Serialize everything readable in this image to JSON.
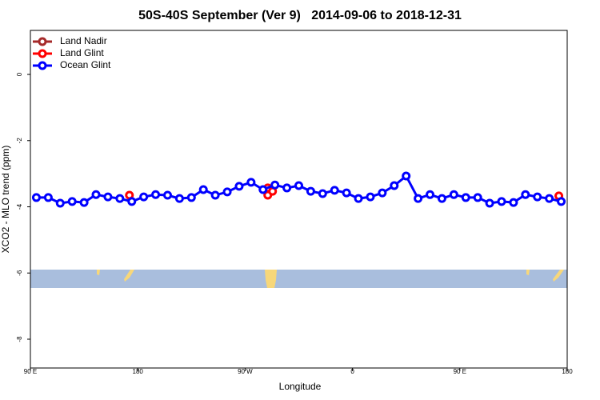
{
  "chart_data": {
    "type": "line",
    "title": "50S-40S September (Ver 9)   2014-09-06 to 2018-12-31",
    "xlabel": "Longitude",
    "ylabel": "XCO2 - MLO trend (ppm)",
    "xlim": [
      90,
      540
    ],
    "xticks": [
      {
        "value": 90,
        "label": "90 E"
      },
      {
        "value": 180,
        "label": "180"
      },
      {
        "value": 270,
        "label": "90 W"
      },
      {
        "value": 360,
        "label": "0"
      },
      {
        "value": 450,
        "label": "90 E"
      },
      {
        "value": 540,
        "label": "180"
      }
    ],
    "ylim": [
      -8.87,
      1.33
    ],
    "yticks": [
      0,
      -2,
      -4,
      -6,
      -8
    ],
    "legend": "top-left",
    "series": [
      {
        "name": "Land Nadir",
        "color": "#a52a2a",
        "line": true,
        "x": [],
        "values": []
      },
      {
        "name": "Land Glint",
        "color": "#ff0000",
        "line": false,
        "x": [
          173,
          289,
          289,
          293,
          533
        ],
        "values": [
          -3.65,
          -3.43,
          -3.65,
          -3.53,
          -3.67
        ]
      },
      {
        "name": "Ocean Glint",
        "color": "#0000ff",
        "line": true,
        "x": [
          95,
          105,
          115,
          125,
          135,
          145,
          155,
          165,
          175,
          185,
          195,
          205,
          215,
          225,
          235,
          245,
          255,
          265,
          275,
          285,
          295,
          305,
          315,
          325,
          335,
          345,
          355,
          365,
          375,
          385,
          395,
          405,
          415,
          425,
          435,
          445,
          455,
          465,
          475,
          485,
          495,
          505,
          515,
          525,
          535
        ],
        "values": [
          -3.72,
          -3.72,
          -3.89,
          -3.84,
          -3.87,
          -3.63,
          -3.7,
          -3.75,
          -3.84,
          -3.7,
          -3.63,
          -3.65,
          -3.75,
          -3.72,
          -3.48,
          -3.65,
          -3.55,
          -3.38,
          -3.26,
          -3.48,
          -3.34,
          -3.43,
          -3.36,
          -3.53,
          -3.6,
          -3.5,
          -3.58,
          -3.75,
          -3.7,
          -3.58,
          -3.36,
          -3.07,
          -3.75,
          -3.63,
          -3.75,
          -3.63,
          -3.72,
          -3.72,
          -3.89,
          -3.84,
          -3.87,
          -3.63,
          -3.7,
          -3.75,
          -3.84
        ]
      }
    ]
  }
}
